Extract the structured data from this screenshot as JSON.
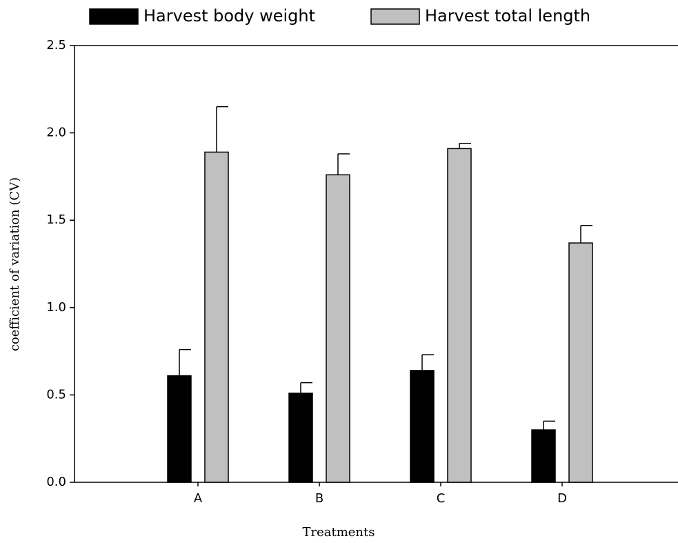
{
  "chart_data": {
    "type": "bar",
    "xlabel": "Treatments",
    "ylabel": "coefficient of variation (CV)",
    "categories": [
      "A",
      "B",
      "C",
      "D"
    ],
    "series": [
      {
        "name": "Harvest body weight",
        "color": "#000000",
        "values": [
          0.61,
          0.51,
          0.64,
          0.3
        ],
        "errors": [
          0.15,
          0.06,
          0.09,
          0.05
        ]
      },
      {
        "name": "Harvest total length",
        "color": "#c0c0c0",
        "values": [
          1.89,
          1.76,
          1.91,
          1.37
        ],
        "errors": [
          0.26,
          0.12,
          0.03,
          0.1
        ]
      }
    ],
    "ylim": [
      0,
      2.5
    ],
    "yticks": [
      {
        "value": 0,
        "label": "0.0"
      },
      0.5,
      {
        "value": 1,
        "label": "1.0"
      },
      1.5,
      {
        "value": 2,
        "label": "2.0"
      },
      2.5
    ],
    "grid": false,
    "legend": "top"
  }
}
